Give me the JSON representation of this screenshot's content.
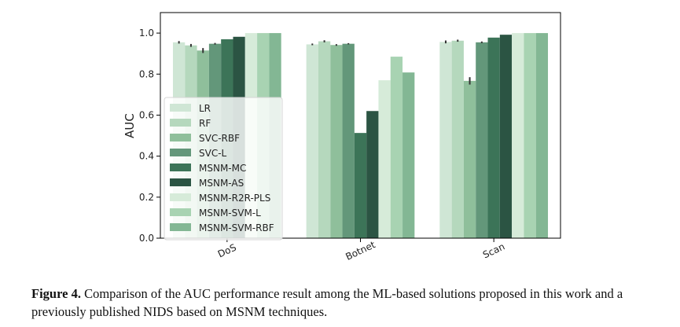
{
  "chart_data": {
    "type": "bar",
    "title": "",
    "xlabel": "",
    "ylabel": "AUC",
    "ylim": [
      0,
      1.1
    ],
    "yticks": [
      "0.0",
      "0.2",
      "0.4",
      "0.6",
      "0.8",
      "1.0"
    ],
    "categories": [
      "DoS",
      "Botnet",
      "Scan"
    ],
    "legend_position": "center-left",
    "grid": false,
    "series": [
      {
        "name": "LR",
        "color": "#cfe6d5",
        "values": [
          0.955,
          0.945,
          0.957
        ],
        "error": [
          0.006,
          0.004,
          0.007
        ]
      },
      {
        "name": "RF",
        "color": "#b5d8bd",
        "values": [
          0.94,
          0.96,
          0.963
        ],
        "error": [
          0.007,
          0.005,
          0.005
        ]
      },
      {
        "name": "SVC-RBF",
        "color": "#8fbf9b",
        "values": [
          0.915,
          0.942,
          0.767
        ],
        "error": [
          0.012,
          0.004,
          0.018
        ]
      },
      {
        "name": "SVC-L",
        "color": "#63977a",
        "values": [
          0.948,
          0.948,
          0.955
        ],
        "error": [
          0.004,
          0.003,
          0.004
        ]
      },
      {
        "name": "MSNM-MC",
        "color": "#3c7458",
        "values": [
          0.97,
          0.513,
          0.978
        ],
        "error": [
          0,
          0,
          0
        ]
      },
      {
        "name": "MSNM-AS",
        "color": "#2b5443",
        "values": [
          0.982,
          0.62,
          0.992
        ],
        "error": [
          0,
          0,
          0
        ]
      },
      {
        "name": "MSNM-R2R-PLS",
        "color": "#d6ebd9",
        "values": [
          1.0,
          0.77,
          1.0
        ],
        "error": [
          0,
          0,
          0
        ]
      },
      {
        "name": "MSNM-SVM-L",
        "color": "#a8d3b2",
        "values": [
          1.0,
          0.885,
          1.0
        ],
        "error": [
          0,
          0,
          0
        ]
      },
      {
        "name": "MSNM-SVM-RBF",
        "color": "#83b794",
        "values": [
          1.0,
          0.808,
          1.0
        ],
        "error": [
          0,
          0,
          0
        ]
      }
    ]
  },
  "caption": {
    "label": "Figure 4.",
    "text": " Comparison of the AUC performance result among the ML-based solutions proposed in this work and a previously published NIDS based on MSNM techniques."
  }
}
